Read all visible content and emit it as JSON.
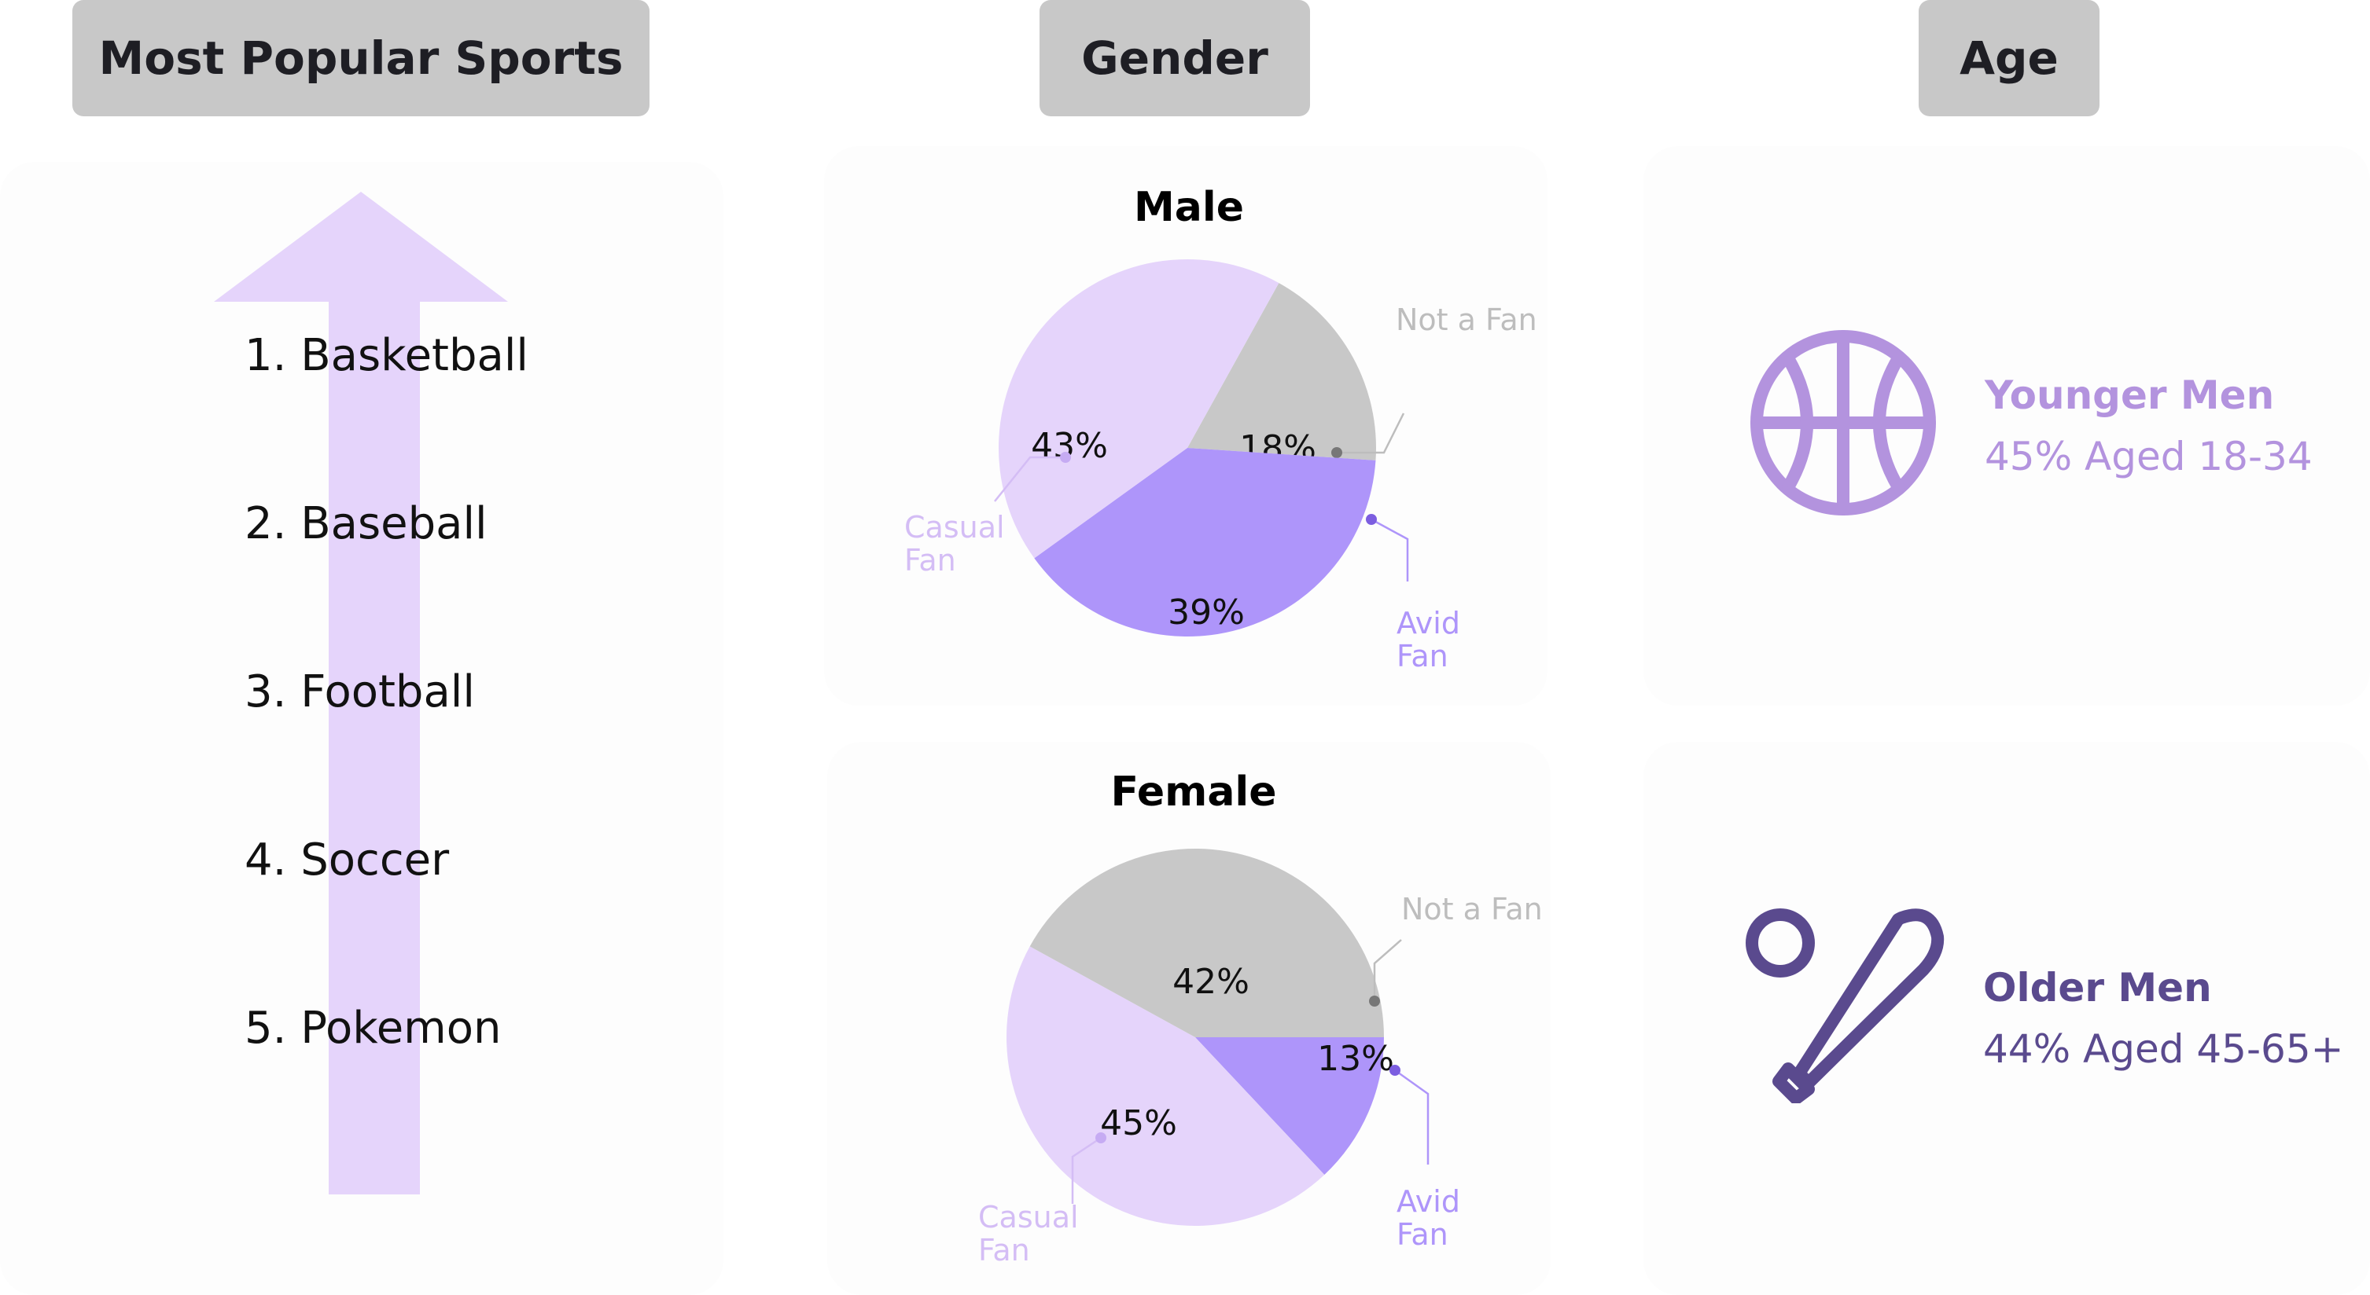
{
  "headers": {
    "sports": "Most Popular Sports",
    "gender": "Gender",
    "age": "Age"
  },
  "ranking": {
    "items": [
      "1. Basketball",
      "2. Baseball",
      "3. Football",
      "4. Soccer",
      "5. Pokemon"
    ]
  },
  "chart_data": [
    {
      "type": "pie",
      "title": "Male",
      "slices": [
        {
          "label": "Not a Fan",
          "value": 18,
          "pct_text": "18%",
          "label_lines": [
            "Not a Fan"
          ],
          "color": "#c8c8c8",
          "label_color": "#bdbdbd",
          "dot_color": "#777777"
        },
        {
          "label": "Avid Fan",
          "value": 39,
          "pct_text": "39%",
          "label_lines": [
            "Avid",
            "Fan"
          ],
          "color": "#ae95fa",
          "label_color": "#ae95fa",
          "dot_color": "#7c5ee0"
        },
        {
          "label": "Casual Fan",
          "value": 43,
          "pct_text": "43%",
          "label_lines": [
            "Casual",
            "Fan"
          ],
          "color": "#e5d4fb",
          "label_color": "#d4bdf5",
          "dot_color": "#c6abf3"
        }
      ]
    },
    {
      "type": "pie",
      "title": "Female",
      "slices": [
        {
          "label": "Avid Fan",
          "value": 13,
          "pct_text": "13%",
          "label_lines": [
            "Avid",
            "Fan"
          ],
          "color": "#ae95fa",
          "label_color": "#ae95fa",
          "dot_color": "#7c5ee0"
        },
        {
          "label": "Casual Fan",
          "value": 45,
          "pct_text": "45%",
          "label_lines": [
            "Casual",
            "Fan"
          ],
          "color": "#e5d4fb",
          "label_color": "#d4bdf5",
          "dot_color": "#c6abf3"
        },
        {
          "label": "Not a Fan",
          "value": 42,
          "pct_text": "42%",
          "label_lines": [
            "Not a Fan"
          ],
          "color": "#c8c8c8",
          "label_color": "#bdbdbd",
          "dot_color": "#777777"
        }
      ]
    }
  ],
  "age": {
    "younger": {
      "title": "Younger Men",
      "subtitle": "45% Aged 18-34",
      "icon": "basketball-icon",
      "color": "#b393de"
    },
    "older": {
      "title": "Older Men",
      "subtitle": "44% Aged 45-65+",
      "icon": "baseball-bat-icon",
      "color": "#5a4a8e"
    }
  },
  "colors": {
    "arrow": "#e5d4fb",
    "header_bg": "#c8c8c8"
  }
}
